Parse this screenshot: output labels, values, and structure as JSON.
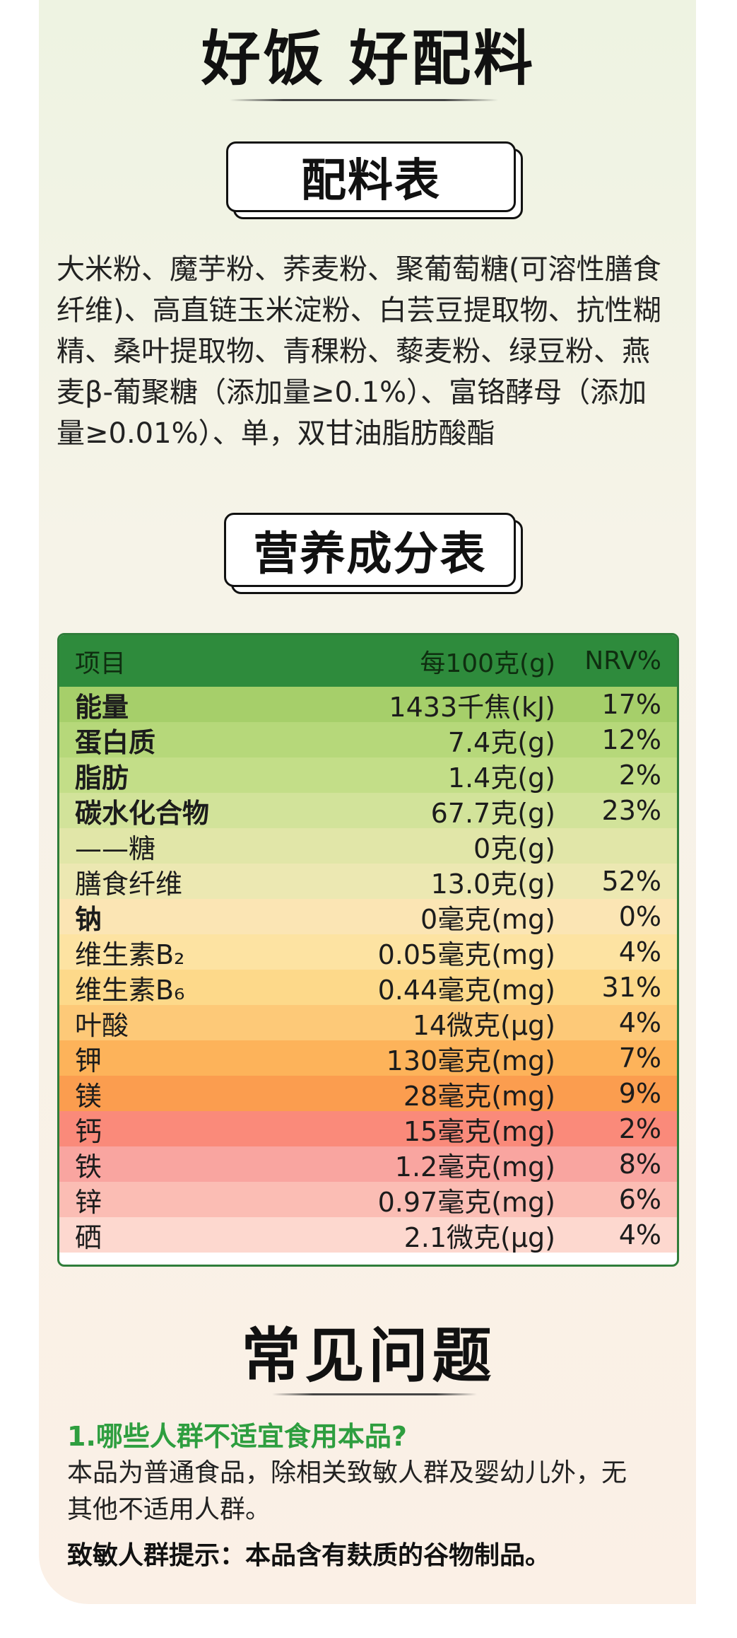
{
  "header": {
    "title": "好饭 好配料"
  },
  "ingredients_section": {
    "tag": "配料表",
    "lines": [
      "大米粉、魔芋粉、荞麦粉、聚葡萄糖(可溶性膳食",
      "纤维)、高直链玉米淀粉、白芸豆提取物、抗性糊",
      "精、桑叶提取物、青稞粉、藜麦粉、绿豆粉、燕",
      "麦β-葡聚糖（添加量≥0.1%）、富铬酵母（添加",
      "量≥0.01%）、单，双甘油脂肪酸酯"
    ]
  },
  "nutrition_section": {
    "tag": "营养成分表",
    "header": {
      "item": "项目",
      "per100": "每100克(g)",
      "nrv": "NRV%"
    },
    "rows": [
      {
        "name": "能量",
        "value": "1433千焦(kJ)",
        "nrv": "17%",
        "bold": true,
        "color": "#a6cf6a"
      },
      {
        "name": "蛋白质",
        "value": "7.4克(g)",
        "nrv": "12%",
        "bold": true,
        "color": "#b6d87a"
      },
      {
        "name": "脂肪",
        "value": "1.4克(g)",
        "nrv": "2%",
        "bold": true,
        "color": "#c3de88"
      },
      {
        "name": "碳水化合物",
        "value": "67.7克(g)",
        "nrv": "23%",
        "bold": true,
        "color": "#d2e39a"
      },
      {
        "name": "——糖",
        "value": "0克(g)",
        "nrv": "",
        "bold": false,
        "color": "#e1e6a8"
      },
      {
        "name": "膳食纤维",
        "value": "13.0克(g)",
        "nrv": "52%",
        "bold": false,
        "color": "#ece8b2"
      },
      {
        "name": "钠",
        "value": "0毫克(mg)",
        "nrv": "0%",
        "bold": true,
        "color": "#fbe5b4"
      },
      {
        "name": "维生素B₂",
        "value": "0.05毫克(mg)",
        "nrv": "4%",
        "bold": false,
        "color": "#fde3a2"
      },
      {
        "name": "维生素B₆",
        "value": "0.44毫克(mg)",
        "nrv": "31%",
        "bold": false,
        "color": "#fdd98a"
      },
      {
        "name": "叶酸",
        "value": "14微克(μg)",
        "nrv": "4%",
        "bold": false,
        "color": "#fdc978"
      },
      {
        "name": "钾",
        "value": "130毫克(mg)",
        "nrv": "7%",
        "bold": false,
        "color": "#fdb35a"
      },
      {
        "name": "镁",
        "value": "28毫克(mg)",
        "nrv": "9%",
        "bold": false,
        "color": "#fb9d4f"
      },
      {
        "name": "钙",
        "value": "15毫克(mg)",
        "nrv": "2%",
        "bold": false,
        "color": "#fa8a7a"
      },
      {
        "name": "铁",
        "value": "1.2毫克(mg)",
        "nrv": "8%",
        "bold": false,
        "color": "#f9a5a0"
      },
      {
        "name": "锌",
        "value": "0.97毫克(mg)",
        "nrv": "6%",
        "bold": false,
        "color": "#fbbdb4"
      },
      {
        "name": "硒",
        "value": "2.1微克(μg)",
        "nrv": "4%",
        "bold": false,
        "color": "#fdd8cf"
      }
    ]
  },
  "faq_section": {
    "title": "常见问题",
    "question": "1.哪些人群不适宜食用本品?",
    "answer_lines": [
      "本品为普通食品，除相关致敏人群及婴幼儿外，无",
      "其他不适用人群。"
    ],
    "allergen_note": "致敏人群提示：本品含有麸质的谷物制品。"
  }
}
